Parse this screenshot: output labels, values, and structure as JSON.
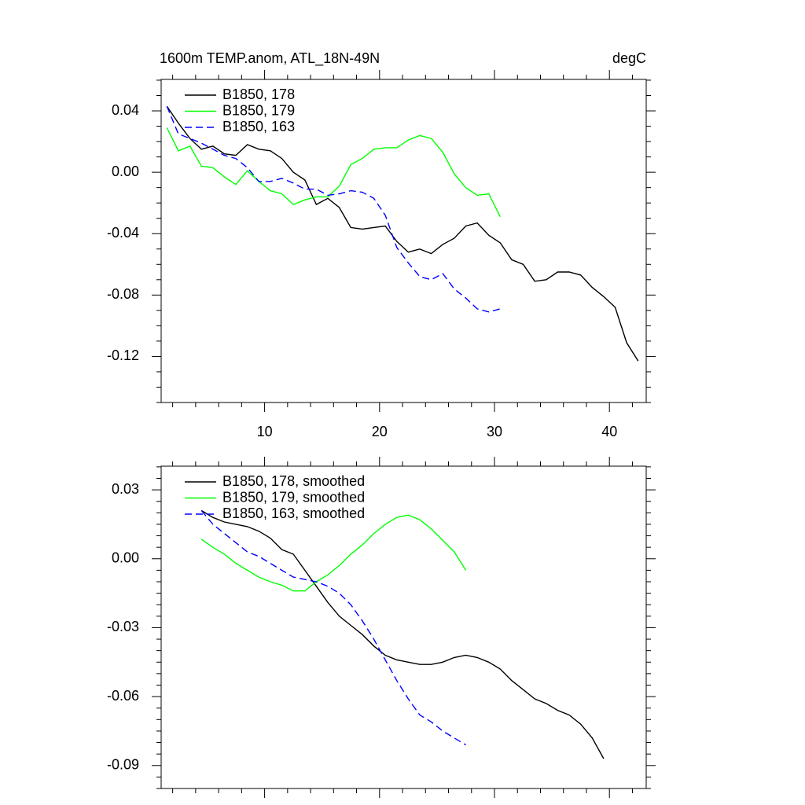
{
  "chart_data": [
    {
      "type": "line",
      "title": "1600m TEMP.anom, ATL_18N-49N",
      "right_title": "degC",
      "x": [
        1.5,
        2.5,
        3.5,
        4.5,
        5.5,
        6.5,
        7.5,
        8.5,
        9.5,
        10.5,
        11.5,
        12.5,
        13.5,
        14.5,
        15.5,
        16.5,
        17.5,
        18.5,
        19.5,
        20.5,
        21.5,
        22.5,
        23.5,
        24.5,
        25.5,
        26.5,
        27.5,
        28.5,
        29.5,
        30.5,
        31.5,
        32.5,
        33.5,
        34.5,
        35.5,
        36.5,
        37.5,
        38.5,
        39.5,
        40.5,
        41.5,
        42.5
      ],
      "series": [
        {
          "name": "B1850, 178",
          "color": "#000000",
          "style": "solid",
          "values": [
            0.043,
            0.032,
            0.022,
            0.015,
            0.017,
            0.012,
            0.011,
            0.018,
            0.015,
            0.014,
            0.009,
            0.0,
            -0.005,
            -0.021,
            -0.017,
            -0.023,
            -0.036,
            -0.037,
            -0.036,
            -0.035,
            -0.045,
            -0.052,
            -0.05,
            -0.053,
            -0.047,
            -0.043,
            -0.035,
            -0.033,
            -0.041,
            -0.046,
            -0.057,
            -0.06,
            -0.071,
            -0.07,
            -0.065,
            -0.065,
            -0.067,
            -0.075,
            -0.081,
            -0.088,
            -0.111,
            -0.123
          ]
        },
        {
          "name": "B1850, 179",
          "color": "#00ff00",
          "style": "solid",
          "values": [
            0.029,
            0.014,
            0.017,
            0.004,
            0.003,
            -0.003,
            -0.008,
            0.001,
            -0.006,
            -0.012,
            -0.014,
            -0.021,
            -0.018,
            -0.016,
            -0.016,
            -0.009,
            0.005,
            0.009,
            0.015,
            0.016,
            0.016,
            0.021,
            0.024,
            0.022,
            0.013,
            -0.001,
            -0.01,
            -0.015,
            -0.014,
            -0.029,
            null,
            null,
            null,
            null,
            null,
            null,
            null,
            null,
            null,
            null,
            null,
            null
          ]
        },
        {
          "name": "B1850, 163",
          "color": "#0000ff",
          "style": "dashed",
          "values": [
            0.043,
            0.025,
            0.022,
            0.019,
            0.015,
            0.011,
            0.009,
            0.003,
            -0.006,
            -0.006,
            -0.004,
            -0.007,
            -0.011,
            -0.011,
            -0.015,
            -0.014,
            -0.012,
            -0.013,
            -0.017,
            -0.028,
            -0.049,
            -0.059,
            -0.068,
            -0.07,
            -0.066,
            -0.076,
            -0.082,
            -0.089,
            -0.091,
            -0.089,
            null,
            null,
            null,
            null,
            null,
            null,
            null,
            null,
            null,
            null,
            null,
            null
          ]
        }
      ],
      "xlim": [
        1,
        43.2
      ],
      "xticks": [
        10,
        20,
        30,
        40
      ],
      "show_xtick_labels": true,
      "ylim": [
        -0.15,
        0.0605
      ],
      "yticks": [
        {
          "value": 0.04,
          "label": "0.04"
        },
        {
          "value": 0.0,
          "label": "0.00"
        },
        {
          "value": -0.04,
          "label": "-0.04"
        },
        {
          "value": -0.08,
          "label": "-0.08"
        },
        {
          "value": -0.12,
          "label": "-0.12"
        }
      ],
      "x_minor_per_major": 5,
      "y_minor_per_major": 4,
      "legend": "upper left"
    },
    {
      "type": "line",
      "x": [
        4.5,
        5.5,
        6.5,
        7.5,
        8.5,
        9.5,
        10.5,
        11.5,
        12.5,
        13.5,
        14.5,
        15.5,
        16.5,
        17.5,
        18.5,
        19.5,
        20.5,
        21.5,
        22.5,
        23.5,
        24.5,
        25.5,
        26.5,
        27.5,
        28.5,
        29.5,
        30.5,
        31.5,
        32.5,
        33.5,
        34.5,
        35.5,
        36.5,
        37.5,
        38.5,
        39.5
      ],
      "series": [
        {
          "name": "B1850, 178, smoothed",
          "color": "#000000",
          "style": "solid",
          "values": [
            0.021,
            0.018,
            0.016,
            0.015,
            0.014,
            0.012,
            0.009,
            0.004,
            0.002,
            -0.005,
            -0.012,
            -0.019,
            -0.025,
            -0.029,
            -0.033,
            -0.038,
            -0.042,
            -0.044,
            -0.045,
            -0.046,
            -0.046,
            -0.045,
            -0.043,
            -0.042,
            -0.043,
            -0.045,
            -0.048,
            -0.053,
            -0.057,
            -0.061,
            -0.063,
            -0.066,
            -0.068,
            -0.072,
            -0.078,
            -0.087
          ]
        },
        {
          "name": "B1850, 179, smoothed",
          "color": "#00ff00",
          "style": "solid",
          "values": [
            0.0085,
            0.005,
            0.002,
            -0.002,
            -0.005,
            -0.008,
            -0.01,
            -0.0115,
            -0.014,
            -0.014,
            -0.01,
            -0.007,
            -0.003,
            0.002,
            0.006,
            0.011,
            0.015,
            0.018,
            0.019,
            0.017,
            0.013,
            0.008,
            0.003,
            -0.005,
            null,
            null,
            null,
            null,
            null,
            null,
            null,
            null,
            null,
            null,
            null,
            null
          ]
        },
        {
          "name": "B1850, 163, smoothed",
          "color": "#0000ff",
          "style": "dashed",
          "values": [
            0.021,
            0.015,
            0.011,
            0.007,
            0.003,
            0.001,
            -0.002,
            -0.005,
            -0.008,
            -0.009,
            -0.01,
            -0.012,
            -0.015,
            -0.02,
            -0.027,
            -0.035,
            -0.044,
            -0.053,
            -0.061,
            -0.068,
            -0.071,
            -0.075,
            -0.078,
            -0.081,
            null,
            null,
            null,
            null,
            null,
            null,
            null,
            null,
            null,
            null,
            null,
            null
          ]
        }
      ],
      "xlim": [
        1,
        43.2
      ],
      "xticks": [
        10,
        20,
        30,
        40
      ],
      "show_xtick_labels": false,
      "ylim": [
        -0.1,
        0.0403
      ],
      "yticks": [
        {
          "value": 0.03,
          "label": "0.03"
        },
        {
          "value": 0.0,
          "label": "0.00"
        },
        {
          "value": -0.03,
          "label": "-0.03"
        },
        {
          "value": -0.06,
          "label": "-0.06"
        },
        {
          "value": -0.09,
          "label": "-0.09"
        }
      ],
      "x_minor_per_major": 5,
      "y_minor_per_major": 6,
      "legend": "upper left"
    }
  ]
}
